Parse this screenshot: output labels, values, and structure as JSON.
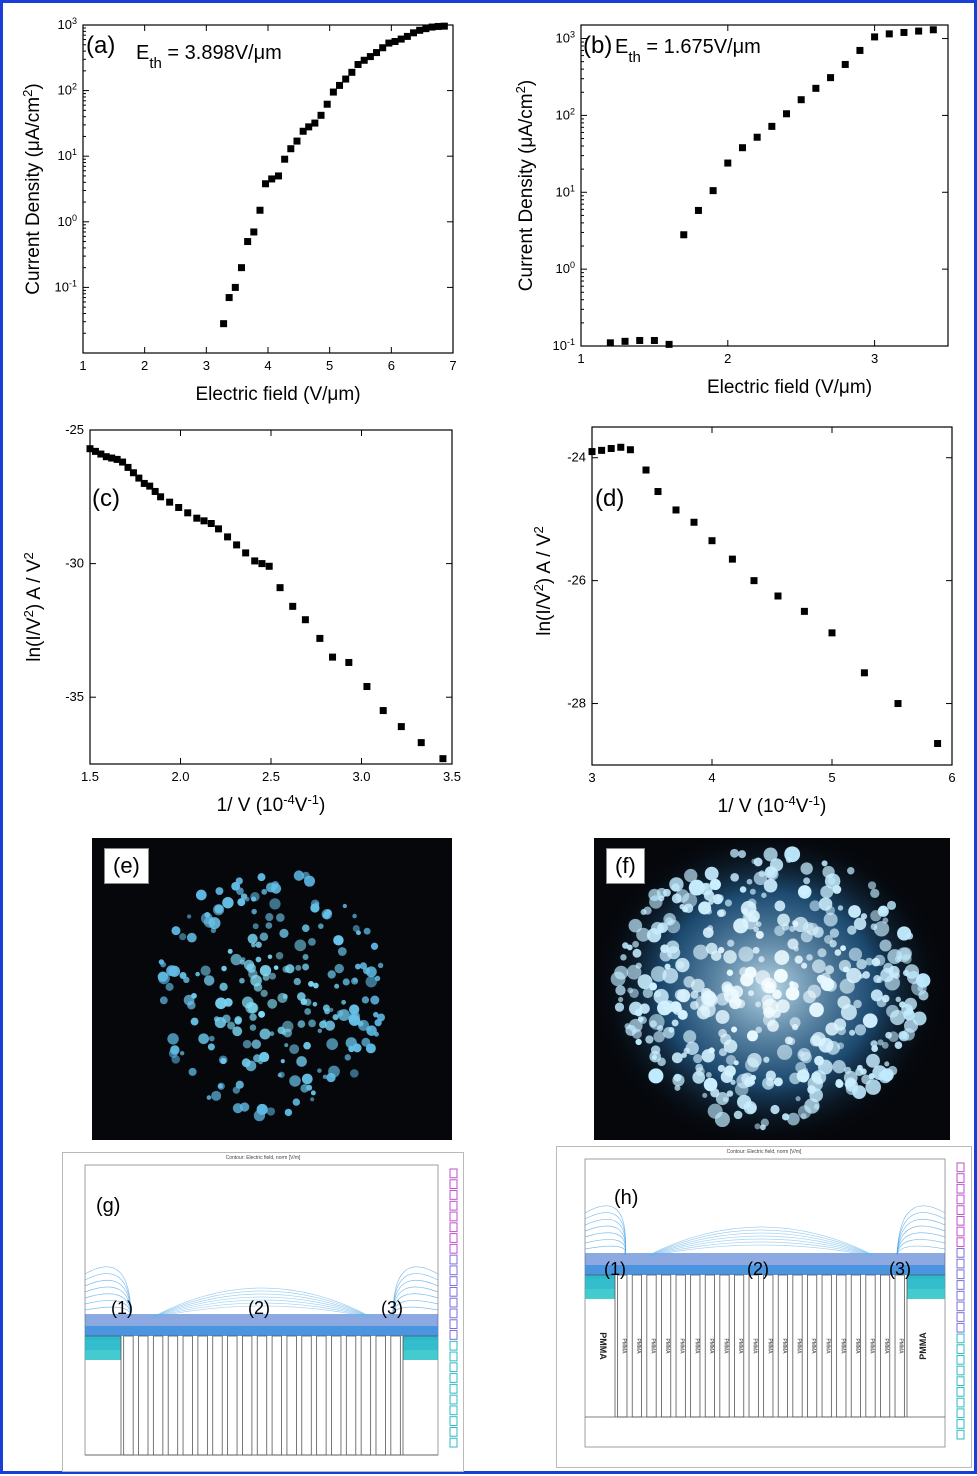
{
  "chart_data": [
    {
      "panel": "(a)",
      "type": "scatter",
      "annotation": "E_th = 3.898V/μm",
      "xlabel": "Electric field (V/μm)",
      "ylabel": "Current Density (μA/cm²)",
      "yscale": "log",
      "xlim": [
        1,
        7
      ],
      "ylim": [
        0.01,
        1000
      ],
      "x_ticks": [
        1,
        2,
        3,
        4,
        5,
        6,
        7
      ],
      "y_ticks": [
        0.1,
        1,
        10,
        100,
        1000
      ],
      "series": [
        {
          "x": [
            3.28,
            3.37,
            3.47,
            3.57,
            3.67,
            3.77,
            3.87,
            3.96,
            4.06,
            4.17,
            4.27,
            4.37,
            4.47,
            4.57,
            4.66,
            4.76,
            4.86,
            4.96,
            5.06,
            5.16,
            5.26,
            5.36,
            5.46,
            5.56,
            5.66,
            5.76,
            5.86,
            5.96,
            6.06,
            6.16,
            6.26,
            6.36,
            6.46,
            6.56,
            6.66,
            6.76,
            6.86
          ],
          "y": [
            0.028,
            0.07,
            0.1,
            0.2,
            0.5,
            0.7,
            1.5,
            3.8,
            4.5,
            5,
            9,
            13,
            17,
            24,
            28,
            32,
            42,
            62,
            95,
            120,
            150,
            190,
            250,
            290,
            330,
            380,
            450,
            530,
            560,
            610,
            670,
            760,
            830,
            880,
            930,
            950,
            960
          ]
        }
      ]
    },
    {
      "panel": "(b)",
      "type": "scatter",
      "annotation": "E_th = 1.675V/μm",
      "xlabel": "Electric field (V/μm)",
      "ylabel": "Current Density (μA/cm²)",
      "yscale": "log",
      "xlim": [
        1,
        3.5
      ],
      "ylim": [
        0.1,
        1500
      ],
      "x_ticks": [
        1,
        2,
        3
      ],
      "y_ticks": [
        0.1,
        1,
        10,
        100,
        1000
      ],
      "series": [
        {
          "x": [
            1.2,
            1.3,
            1.4,
            1.5,
            1.6,
            1.7,
            1.8,
            1.9,
            2.0,
            2.1,
            2.2,
            2.3,
            2.4,
            2.5,
            2.6,
            2.7,
            2.8,
            2.9,
            3.0,
            3.1,
            3.2,
            3.3,
            3.4
          ],
          "y": [
            0.11,
            0.115,
            0.118,
            0.118,
            0.105,
            2.8,
            5.8,
            10.5,
            24,
            38,
            52,
            72,
            105,
            160,
            225,
            310,
            460,
            700,
            1050,
            1150,
            1200,
            1250,
            1300
          ]
        }
      ]
    },
    {
      "panel": "(c)",
      "type": "scatter",
      "xlabel": "1/ V (10⁻⁴V⁻¹)",
      "ylabel": "ln(I/V²) A / V²",
      "xlim": [
        1.5,
        3.5
      ],
      "ylim": [
        -37.5,
        -25
      ],
      "x_ticks": [
        1.5,
        2.0,
        2.5,
        3.0,
        3.5
      ],
      "y_ticks": [
        -25,
        -30,
        -35
      ],
      "series": [
        {
          "x": [
            1.5,
            1.53,
            1.56,
            1.59,
            1.62,
            1.65,
            1.68,
            1.71,
            1.74,
            1.77,
            1.8,
            1.83,
            1.86,
            1.89,
            1.94,
            1.99,
            2.04,
            2.09,
            2.13,
            2.17,
            2.21,
            2.26,
            2.31,
            2.36,
            2.41,
            2.45,
            2.49,
            2.55,
            2.62,
            2.69,
            2.77,
            2.84,
            2.93,
            3.03,
            3.12,
            3.22,
            3.33,
            3.45
          ],
          "y": [
            -25.7,
            -25.8,
            -25.9,
            -26.0,
            -26.05,
            -26.1,
            -26.2,
            -26.4,
            -26.6,
            -26.8,
            -27.0,
            -27.1,
            -27.3,
            -27.5,
            -27.7,
            -27.9,
            -28.1,
            -28.3,
            -28.4,
            -28.5,
            -28.7,
            -29.0,
            -29.3,
            -29.6,
            -29.9,
            -30.0,
            -30.1,
            -30.9,
            -31.6,
            -32.1,
            -32.8,
            -33.5,
            -33.7,
            -34.6,
            -35.5,
            -36.1,
            -36.7,
            -37.3
          ]
        }
      ]
    },
    {
      "panel": "(d)",
      "type": "scatter",
      "xlabel": "1/ V (10⁻⁴V⁻¹)",
      "ylabel": "ln(I/V²) A / V²",
      "xlim": [
        3,
        6
      ],
      "ylim": [
        -29,
        -23.5
      ],
      "x_ticks": [
        3,
        4,
        5,
        6
      ],
      "y_ticks": [
        -24,
        -26,
        -28
      ],
      "series": [
        {
          "x": [
            3.0,
            3.08,
            3.16,
            3.24,
            3.32,
            3.45,
            3.55,
            3.7,
            3.85,
            4.0,
            4.17,
            4.35,
            4.55,
            4.77,
            5.0,
            5.27,
            5.55,
            5.88
          ],
          "y": [
            -23.9,
            -23.88,
            -23.85,
            -23.83,
            -23.87,
            -24.2,
            -24.55,
            -24.85,
            -25.05,
            -25.35,
            -25.65,
            -26.0,
            -26.25,
            -26.5,
            -26.85,
            -27.5,
            -28.0,
            -28.65
          ]
        }
      ]
    }
  ],
  "photos": [
    {
      "label": "(e)"
    },
    {
      "label": "(f)"
    }
  ],
  "simulations": [
    {
      "label": "(g)",
      "markers": [
        "(1)",
        "(2)",
        "(3)"
      ]
    },
    {
      "label": "(h)",
      "markers": [
        "(1)",
        "(2)",
        "(3)"
      ],
      "side_labels": [
        "PMMA",
        "PMMA"
      ],
      "pillar_label": "PMMA"
    }
  ],
  "colors": {
    "frame": "#1a3fd6",
    "marker": "#000000",
    "emission": "#4fb8e6",
    "contour": "#3a6fd8"
  }
}
